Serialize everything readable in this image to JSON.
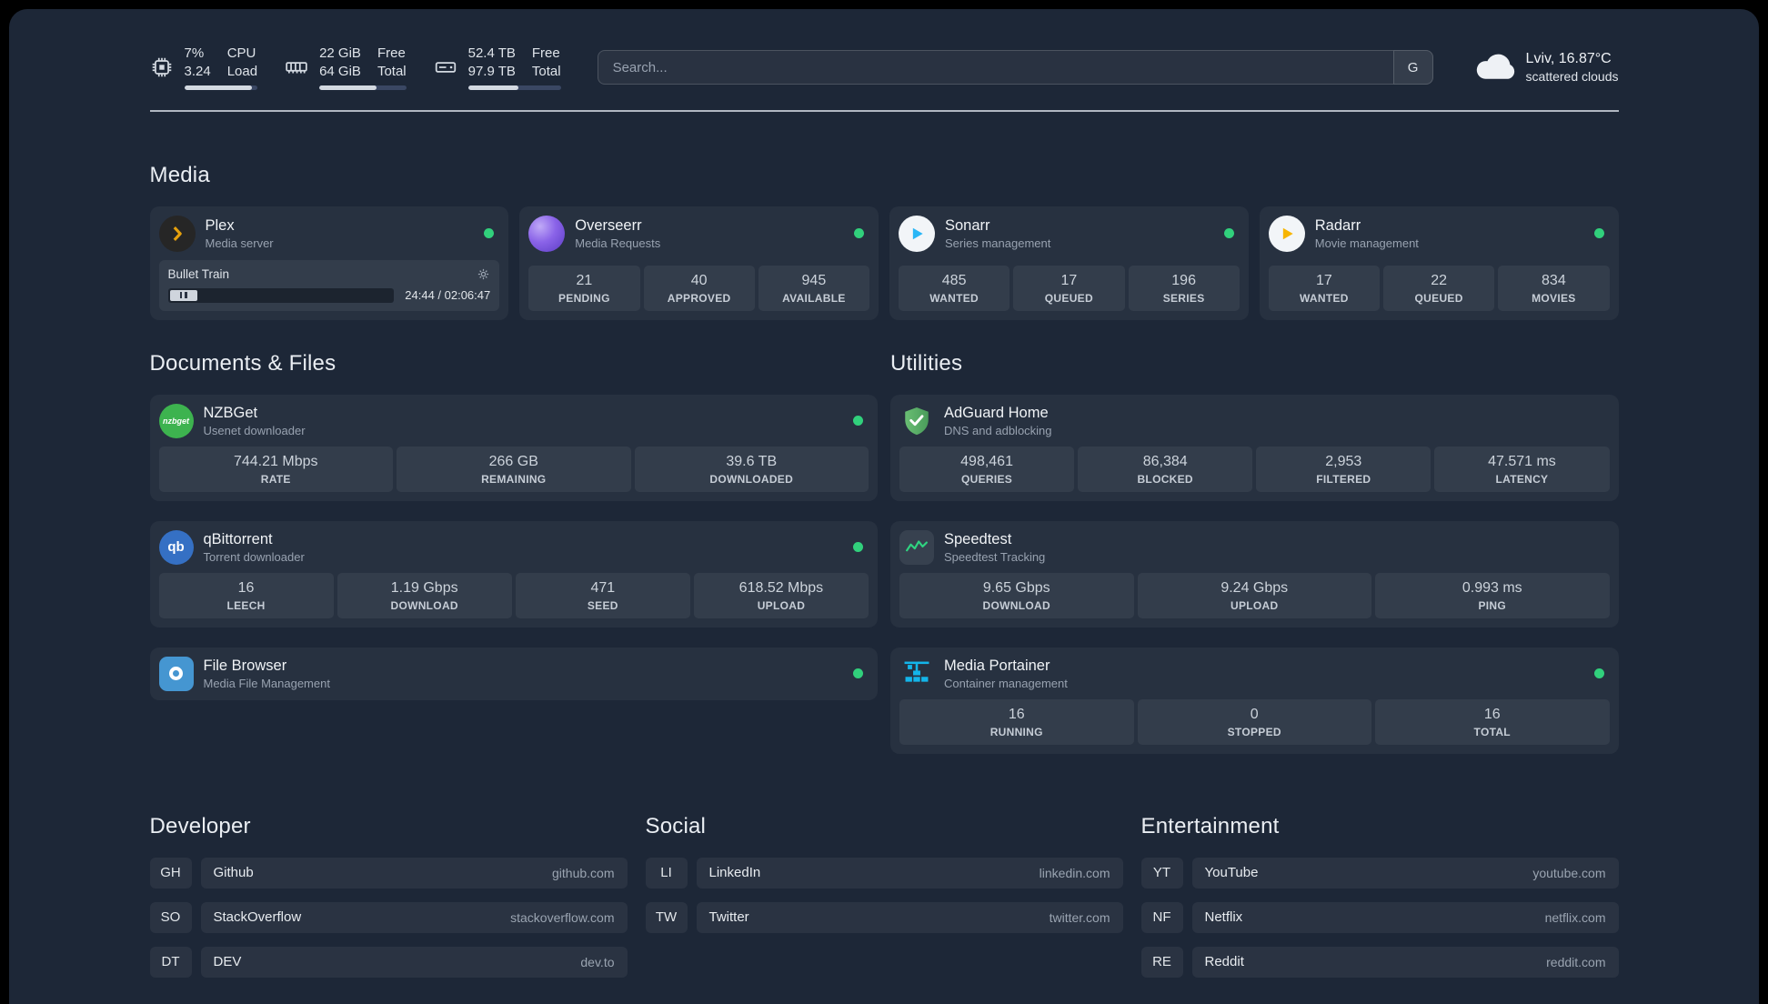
{
  "colors": {
    "status_online": "#31d07c",
    "accent_green": "#2fd380",
    "background": "#1d2737"
  },
  "topbar": {
    "metrics": [
      {
        "icon": "cpu-icon",
        "values": [
          "7%",
          "3.24"
        ],
        "labels": [
          "CPU",
          "Load"
        ],
        "progress": 93
      },
      {
        "icon": "memory-icon",
        "values": [
          "22 GiB",
          "64 GiB"
        ],
        "labels": [
          "Free",
          "Total"
        ],
        "progress": 66
      },
      {
        "icon": "disk-icon",
        "values": [
          "52.4 TB",
          "97.9 TB"
        ],
        "labels": [
          "Free",
          "Total"
        ],
        "progress": 54
      }
    ],
    "search": {
      "placeholder": "Search...",
      "button_label": "G"
    },
    "weather": {
      "location": "Lviv, 16.87°C",
      "condition": "scattered clouds"
    }
  },
  "sections": {
    "media": {
      "title": "Media"
    },
    "documents": {
      "title": "Documents & Files"
    },
    "utilities": {
      "title": "Utilities"
    }
  },
  "services": {
    "plex": {
      "name": "Plex",
      "desc": "Media server",
      "now_playing": "Bullet Train",
      "time": "24:44 / 02:06:47"
    },
    "overseerr": {
      "name": "Overseerr",
      "desc": "Media Requests",
      "stats": [
        {
          "value": "21",
          "label": "PENDING"
        },
        {
          "value": "40",
          "label": "APPROVED"
        },
        {
          "value": "945",
          "label": "AVAILABLE"
        }
      ]
    },
    "sonarr": {
      "name": "Sonarr",
      "desc": "Series management",
      "stats": [
        {
          "value": "485",
          "label": "WANTED"
        },
        {
          "value": "17",
          "label": "QUEUED"
        },
        {
          "value": "196",
          "label": "SERIES"
        }
      ]
    },
    "radarr": {
      "name": "Radarr",
      "desc": "Movie management",
      "stats": [
        {
          "value": "17",
          "label": "WANTED"
        },
        {
          "value": "22",
          "label": "QUEUED"
        },
        {
          "value": "834",
          "label": "MOVIES"
        }
      ]
    },
    "nzbget": {
      "name": "NZBGet",
      "desc": "Usenet downloader",
      "stats": [
        {
          "value": "744.21 Mbps",
          "label": "RATE"
        },
        {
          "value": "266 GB",
          "label": "REMAINING"
        },
        {
          "value": "39.6 TB",
          "label": "DOWNLOADED"
        }
      ]
    },
    "qbittorrent": {
      "name": "qBittorrent",
      "desc": "Torrent downloader",
      "stats": [
        {
          "value": "16",
          "label": "LEECH"
        },
        {
          "value": "1.19 Gbps",
          "label": "DOWNLOAD"
        },
        {
          "value": "471",
          "label": "SEED"
        },
        {
          "value": "618.52 Mbps",
          "label": "UPLOAD"
        }
      ]
    },
    "filebrowser": {
      "name": "File Browser",
      "desc": "Media File Management"
    },
    "adguard": {
      "name": "AdGuard Home",
      "desc": "DNS and adblocking",
      "stats": [
        {
          "value": "498,461",
          "label": "QUERIES"
        },
        {
          "value": "86,384",
          "label": "BLOCKED"
        },
        {
          "value": "2,953",
          "label": "FILTERED"
        },
        {
          "value": "47.571 ms",
          "label": "LATENCY"
        }
      ]
    },
    "speedtest": {
      "name": "Speedtest",
      "desc": "Speedtest Tracking",
      "stats": [
        {
          "value": "9.65 Gbps",
          "label": "DOWNLOAD"
        },
        {
          "value": "9.24 Gbps",
          "label": "UPLOAD"
        },
        {
          "value": "0.993 ms",
          "label": "PING"
        }
      ]
    },
    "portainer": {
      "name": "Media Portainer",
      "desc": "Container management",
      "stats": [
        {
          "value": "16",
          "label": "RUNNING"
        },
        {
          "value": "0",
          "label": "STOPPED"
        },
        {
          "value": "16",
          "label": "TOTAL"
        }
      ]
    }
  },
  "icon_labels": {
    "nzbget": "nzbget",
    "qbittorrent": "qb"
  },
  "bookmarks": [
    {
      "title": "Developer",
      "items": [
        {
          "abbr": "GH",
          "name": "Github",
          "domain": "github.com"
        },
        {
          "abbr": "SO",
          "name": "StackOverflow",
          "domain": "stackoverflow.com"
        },
        {
          "abbr": "DT",
          "name": "DEV",
          "domain": "dev.to"
        }
      ]
    },
    {
      "title": "Social",
      "items": [
        {
          "abbr": "LI",
          "name": "LinkedIn",
          "domain": "linkedin.com"
        },
        {
          "abbr": "TW",
          "name": "Twitter",
          "domain": "twitter.com"
        }
      ]
    },
    {
      "title": "Entertainment",
      "items": [
        {
          "abbr": "YT",
          "name": "YouTube",
          "domain": "youtube.com"
        },
        {
          "abbr": "NF",
          "name": "Netflix",
          "domain": "netflix.com"
        },
        {
          "abbr": "RE",
          "name": "Reddit",
          "domain": "reddit.com"
        }
      ]
    }
  ]
}
